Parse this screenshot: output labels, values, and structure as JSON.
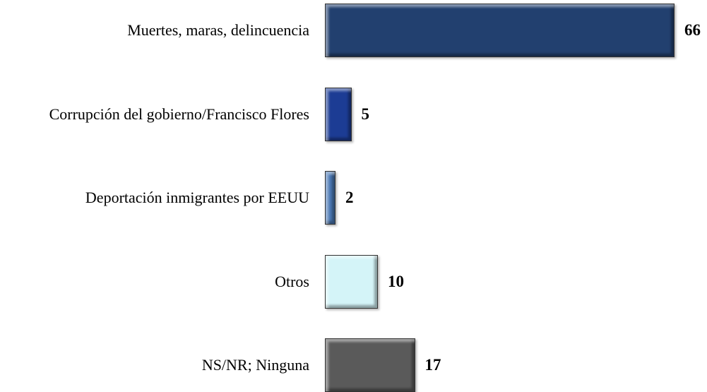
{
  "chart_data": {
    "type": "bar",
    "orientation": "horizontal",
    "categories": [
      "Muertes, maras, delincuencia",
      "Corrupción del gobierno/Francisco Flores",
      "Deportación inmigrantes por EEUU",
      "Otros",
      "NS/NR; Ninguna"
    ],
    "values": [
      66,
      5,
      2,
      10,
      17
    ],
    "colors": [
      "#22406f",
      "#1c3c94",
      "#4a78b4",
      "#d4f4f8",
      "#5a5a5a"
    ]
  }
}
